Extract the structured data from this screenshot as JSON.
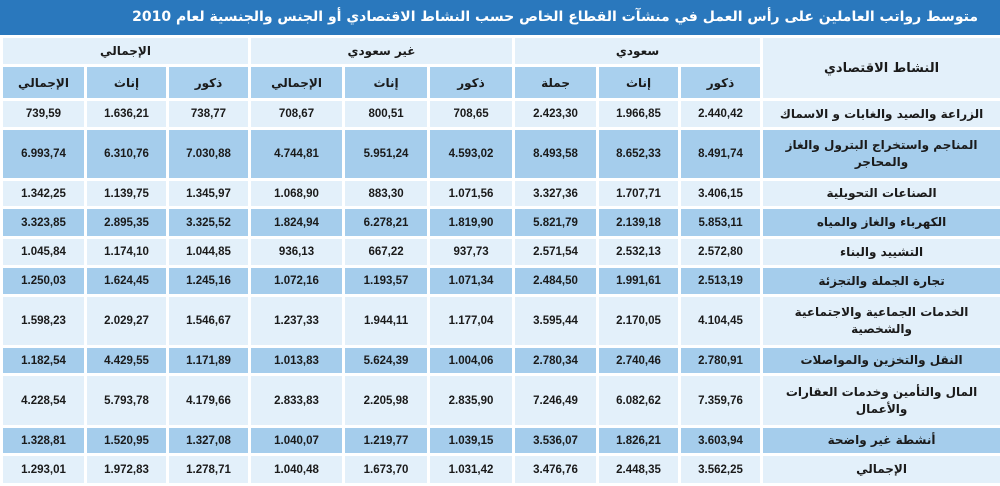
{
  "title": "متوسط رواتب العاملين على رأس العمل في منشآت القطاع الخاص حسب النشاط الاقتصادي أو الجنس والجنسية لعام 2010",
  "header": {
    "activity": "النشاط الاقتصادي",
    "groups": [
      "سعودي",
      "غير سعودي",
      "الإجمالي"
    ],
    "sub": {
      "saudi": [
        "ذكور",
        "إناث",
        "جملة"
      ],
      "non_saudi": [
        "ذكور",
        "إناث",
        "الإجمالي"
      ],
      "total": [
        "ذكور",
        "إناث",
        "الإجمالي"
      ]
    }
  },
  "rows": [
    {
      "activity": "الزراعة والصيد والغابات و الاسماك",
      "values": [
        "2.440,42",
        "1.966,85",
        "2.423,30",
        "708,65",
        "800,51",
        "708,67",
        "738,77",
        "1.636,21",
        "739,59"
      ]
    },
    {
      "activity": "المناجم واستخراج البترول والغاز والمحاجر",
      "values": [
        "8.491,74",
        "8.652,33",
        "8.493,58",
        "4.593,02",
        "5.951,24",
        "4.744,81",
        "7.030,88",
        "6.310,76",
        "6.993,74"
      ]
    },
    {
      "activity": "الصناعات التحويلية",
      "values": [
        "3.406,15",
        "1.707,71",
        "3.327,36",
        "1.071,56",
        "883,30",
        "1.068,90",
        "1.345,97",
        "1.139,75",
        "1.342,25"
      ]
    },
    {
      "activity": "الكهرباء والغاز والمياه",
      "values": [
        "5.853,11",
        "2.139,18",
        "5.821,79",
        "1.819,90",
        "6.278,21",
        "1.824,94",
        "3.325,52",
        "2.895,35",
        "3.323,85"
      ]
    },
    {
      "activity": "التشييد والبناء",
      "values": [
        "2.572,80",
        "2.532,13",
        "2.571,54",
        "937,73",
        "667,22",
        "936,13",
        "1.044,85",
        "1.174,10",
        "1.045,84"
      ]
    },
    {
      "activity": "تجارة الجملة والتجزئة",
      "values": [
        "2.513,19",
        "1.991,61",
        "2.484,50",
        "1.071,34",
        "1.193,57",
        "1.072,16",
        "1.245,16",
        "1.624,45",
        "1.250,03"
      ]
    },
    {
      "activity": "الخدمات الجماعية والاجتماعية والشخصية",
      "values": [
        "4.104,45",
        "2.170,05",
        "3.595,44",
        "1.177,04",
        "1.944,11",
        "1.237,33",
        "1.546,67",
        "2.029,27",
        "1.598,23"
      ]
    },
    {
      "activity": "النقل والتخزين والمواصلات",
      "values": [
        "2.780,91",
        "2.740,46",
        "2.780,34",
        "1.004,06",
        "5.624,39",
        "1.013,83",
        "1.171,89",
        "4.429,55",
        "1.182,54"
      ]
    },
    {
      "activity": "المال والتأمين وخدمات العقارات والأعمال",
      "values": [
        "7.359,76",
        "6.082,62",
        "7.246,49",
        "2.835,90",
        "2.205,98",
        "2.833,83",
        "4.179,66",
        "5.793,78",
        "4.228,54"
      ]
    },
    {
      "activity": "أنشطة غير واضحة",
      "values": [
        "3.603,94",
        "1.826,21",
        "3.536,07",
        "1.039,15",
        "1.219,77",
        "1.040,07",
        "1.327,08",
        "1.520,95",
        "1.328,81"
      ]
    },
    {
      "activity": "الإجمالي",
      "values": [
        "3.562,25",
        "2.448,35",
        "3.476,76",
        "1.031,42",
        "1.673,70",
        "1.040,48",
        "1.278,71",
        "1.972,83",
        "1.293,01"
      ]
    }
  ],
  "colors": {
    "title_bg": "#2a78bd",
    "light_row": "#e3f0fa",
    "dark_row": "#a5cdec"
  }
}
